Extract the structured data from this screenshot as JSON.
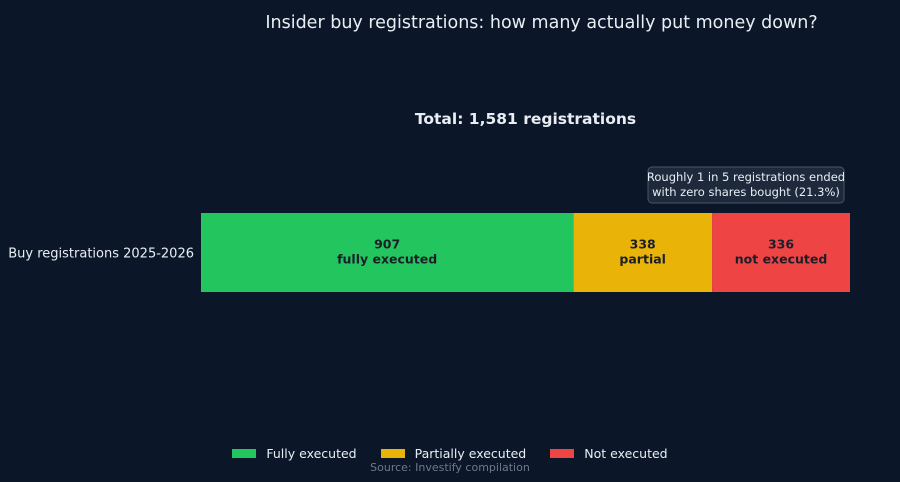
{
  "chart_data": {
    "type": "bar",
    "orientation": "horizontal",
    "stacked": true,
    "title": "Insider buy registrations: how many actually put money down?",
    "subtitle": "Total: 1,581 registrations",
    "categories": [
      "Buy registrations 2025-2026"
    ],
    "series": [
      {
        "name": "Fully executed",
        "values": [
          907
        ],
        "label": "fully executed",
        "color": "#22c55e"
      },
      {
        "name": "Partially executed",
        "values": [
          338
        ],
        "label": "partial",
        "color": "#eab308"
      },
      {
        "name": "Not executed",
        "values": [
          336
        ],
        "label": "not executed",
        "color": "#ef4444"
      }
    ],
    "xlim": [
      0,
      1581
    ],
    "grid": false,
    "legend_position": "bottom",
    "annotation": {
      "text_lines": [
        "Roughly 1 in 5 registrations ended",
        "with zero shares bought (21.3%)"
      ],
      "anchor": "above-last-segment"
    },
    "source": "Source: Investify compilation"
  },
  "colors": {
    "background": "#0b1728",
    "text": "#e9eef5",
    "muted": "#6d7a8c"
  }
}
